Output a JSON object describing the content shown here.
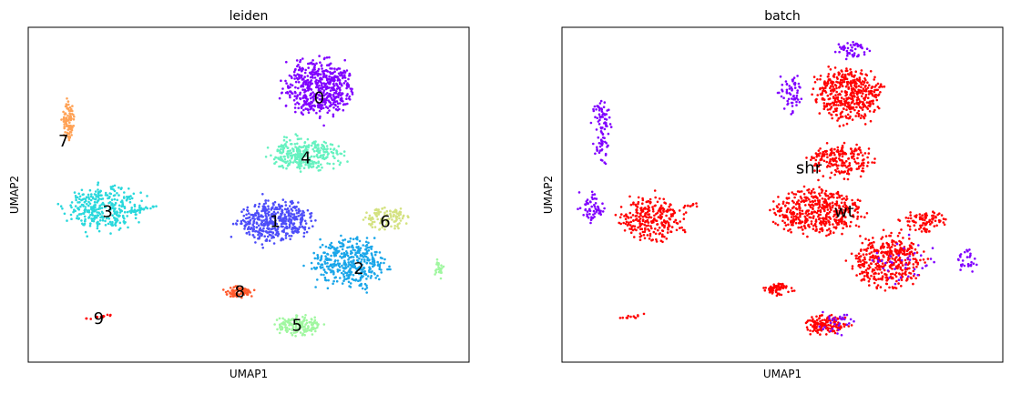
{
  "chart_data": [
    {
      "type": "scatter",
      "title": "leiden",
      "xlabel": "UMAP1",
      "ylabel": "UMAP2",
      "xlim": [
        0,
        100
      ],
      "ylim": [
        0,
        100
      ],
      "grid": false,
      "legend": "on data",
      "series": [
        {
          "label": "0",
          "color": "#8000ff",
          "label_at": [
            66,
            79
          ],
          "clusters": [
            {
              "cx": 66,
              "cy": 82,
              "sx": 12,
              "sy": 13,
              "n": 520,
              "shape": "ellipse"
            }
          ]
        },
        {
          "label": "1",
          "color": "#4d4df9",
          "label_at": [
            56,
            42
          ],
          "clusters": [
            {
              "cx": 56,
              "cy": 42,
              "sx": 13,
              "sy": 10,
              "n": 440,
              "shape": "ellipse"
            }
          ]
        },
        {
          "label": "2",
          "color": "#1aa6e9",
          "label_at": [
            75,
            28
          ],
          "clusters": [
            {
              "cx": 73,
              "cy": 30,
              "sx": 13,
              "sy": 12,
              "n": 400,
              "shape": "ellipse"
            }
          ]
        },
        {
          "label": "3",
          "color": "#29d8dc",
          "label_at": [
            18,
            45
          ],
          "clusters": [
            {
              "cx": 17,
              "cy": 46,
              "sx": 14,
              "sy": 11,
              "n": 320,
              "shape": "ellipse"
            },
            {
              "cx": 27,
              "cy": 46,
              "sx": 4,
              "sy": 2,
              "n": 25,
              "shape": "line"
            }
          ]
        },
        {
          "label": "4",
          "color": "#66f2c0",
          "label_at": [
            63,
            61
          ],
          "clusters": [
            {
              "cx": 63,
              "cy": 62,
              "sx": 13,
              "sy": 8,
              "n": 300,
              "shape": "ellipse"
            }
          ]
        },
        {
          "label": "5",
          "color": "#a0f7a0",
          "label_at": [
            61,
            11
          ],
          "clusters": [
            {
              "cx": 61,
              "cy": 11,
              "sx": 8,
              "sy": 5,
              "n": 160,
              "shape": "ellipse"
            },
            {
              "cx": 93,
              "cy": 28,
              "sx": 2,
              "sy": 4,
              "n": 25,
              "shape": "ellipse"
            }
          ]
        },
        {
          "label": "6",
          "color": "#d4e281",
          "label_at": [
            81,
            42
          ],
          "clusters": [
            {
              "cx": 81,
              "cy": 43,
              "sx": 8,
              "sy": 5,
              "n": 110,
              "shape": "ellipse"
            }
          ]
        },
        {
          "label": "7",
          "color": "#ffa256",
          "label_at": [
            8,
            66
          ],
          "clusters": [
            {
              "cx": 9,
              "cy": 72,
              "sx": 2,
              "sy": 9,
              "n": 90,
              "shape": "ellipse"
            }
          ]
        },
        {
          "label": "8",
          "color": "#ff5a2c",
          "label_at": [
            48,
            21
          ],
          "clusters": [
            {
              "cx": 48,
              "cy": 21,
              "sx": 5,
              "sy": 3,
              "n": 80,
              "shape": "ellipse"
            }
          ]
        },
        {
          "label": "9",
          "color": "#ff0000",
          "label_at": [
            16,
            13
          ],
          "clusters": [
            {
              "cx": 16,
              "cy": 13.5,
              "sx": 3,
              "sy": 1,
              "n": 14,
              "shape": "line"
            }
          ]
        }
      ]
    },
    {
      "type": "scatter",
      "title": "batch",
      "xlabel": "UMAP1",
      "ylabel": "UMAP2",
      "xlim": [
        0,
        100
      ],
      "ylim": [
        0,
        100
      ],
      "grid": false,
      "legend": "on data",
      "series": [
        {
          "label": "wt",
          "color": "#ff0000",
          "label_at": [
            64,
            45
          ],
          "clusters": [
            {
              "cx": 65,
              "cy": 80,
              "sx": 12,
              "sy": 13,
              "n": 430,
              "shape": "ellipse"
            },
            {
              "cx": 58,
              "cy": 45,
              "sx": 15,
              "sy": 11,
              "n": 450,
              "shape": "ellipse"
            },
            {
              "cx": 74,
              "cy": 30,
              "sx": 13,
              "sy": 12,
              "n": 380,
              "shape": "ellipse"
            },
            {
              "cx": 20,
              "cy": 43,
              "sx": 12,
              "sy": 10,
              "n": 260,
              "shape": "ellipse"
            },
            {
              "cx": 63,
              "cy": 60,
              "sx": 12,
              "sy": 8,
              "n": 200,
              "shape": "ellipse"
            },
            {
              "cx": 60,
              "cy": 11,
              "sx": 8,
              "sy": 5,
              "n": 140,
              "shape": "ellipse"
            },
            {
              "cx": 82,
              "cy": 42,
              "sx": 8,
              "sy": 5,
              "n": 90,
              "shape": "ellipse"
            },
            {
              "cx": 49,
              "cy": 22,
              "sx": 5,
              "sy": 3,
              "n": 60,
              "shape": "ellipse"
            },
            {
              "cx": 16,
              "cy": 13.5,
              "sx": 3,
              "sy": 1,
              "n": 12,
              "shape": "line"
            },
            {
              "cx": 27,
              "cy": 46,
              "sx": 4,
              "sy": 2,
              "n": 20,
              "shape": "line"
            }
          ]
        },
        {
          "label": "shr",
          "color": "#8000ff",
          "label_at": [
            56,
            58
          ],
          "clusters": [
            {
              "cx": 9,
              "cy": 70,
              "sx": 3,
              "sy": 15,
              "n": 90,
              "shape": "ellipse"
            },
            {
              "cx": 7,
              "cy": 46,
              "sx": 5,
              "sy": 7,
              "n": 60,
              "shape": "ellipse"
            },
            {
              "cx": 52,
              "cy": 80,
              "sx": 4,
              "sy": 10,
              "n": 60,
              "shape": "ellipse"
            },
            {
              "cx": 66,
              "cy": 93,
              "sx": 6,
              "sy": 4,
              "n": 50,
              "shape": "ellipse"
            },
            {
              "cx": 92,
              "cy": 30,
              "sx": 4,
              "sy": 6,
              "n": 30,
              "shape": "ellipse"
            },
            {
              "cx": 62,
              "cy": 12,
              "sx": 7,
              "sy": 5,
              "n": 30,
              "shape": "ellipse"
            },
            {
              "cx": 78,
              "cy": 30,
              "sx": 12,
              "sy": 12,
              "n": 40,
              "shape": "ellipse"
            }
          ]
        }
      ]
    }
  ]
}
